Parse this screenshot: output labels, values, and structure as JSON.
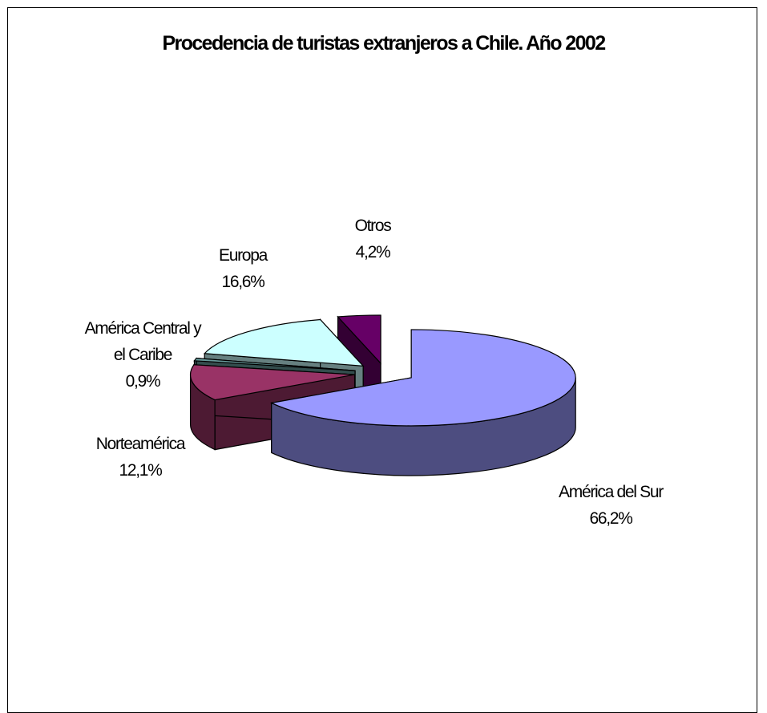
{
  "chart_data": {
    "type": "pie",
    "title": "Procedencia de turistas extranjeros a Chile. Año 2002",
    "slices": [
      {
        "name": "América del Sur",
        "value": 66.2,
        "label": [
          "América del Sur",
          "66,2%"
        ],
        "color": "#9999ff",
        "side": "#4d4d80"
      },
      {
        "name": "Norteamérica",
        "value": 12.1,
        "label": [
          "Norteamérica",
          "12,1%"
        ],
        "color": "#993366",
        "side": "#4d1a33"
      },
      {
        "name": "América Central y el Caribe",
        "value": 0.9,
        "label": [
          "América Central y",
          "el Caribe",
          "0,9%"
        ],
        "color": "#669999",
        "side": "#334d4d"
      },
      {
        "name": "Europa",
        "value": 16.6,
        "label": [
          "Europa",
          "16,6%"
        ],
        "color": "#ccffff",
        "side": "#668080"
      },
      {
        "name": "Otros",
        "value": 4.2,
        "label": [
          "Otros",
          "4,2%"
        ],
        "color": "#660066",
        "side": "#330033"
      }
    ],
    "legend": "none",
    "style": "3d-exploded"
  }
}
